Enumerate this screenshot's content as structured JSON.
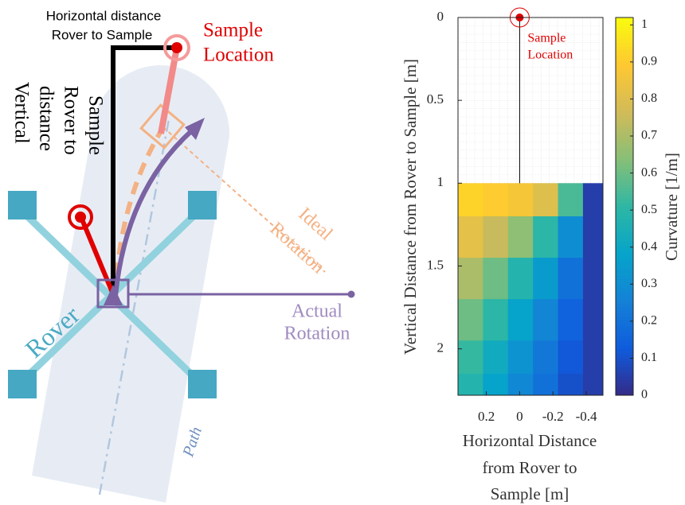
{
  "diagram": {
    "horizontal_label": [
      "Horizontal distance",
      "Rover to Sample"
    ],
    "sample_label": [
      "Sample",
      "Location"
    ],
    "vertical_label": [
      "Vertical",
      "distance",
      "Rover to",
      "Sample"
    ],
    "rover_label": "Rover",
    "ideal_label": [
      "Ideal",
      "Rotation"
    ],
    "actual_label": [
      "Actual",
      "Rotation"
    ],
    "path_label": "Path"
  },
  "chart_data": {
    "type": "heatmap",
    "xlabel": [
      "Horizontal Distance",
      "from Rover to",
      "Sample [m]"
    ],
    "ylabel": "Vertical Distance from Rover to Sample [m]",
    "colorbar_label": "Curvature [1/m]",
    "xlim": [
      0.37,
      -0.5
    ],
    "ylim": [
      0,
      2.28
    ],
    "xticks": [
      0.2,
      0,
      -0.2,
      -0.4
    ],
    "yticks": [
      0,
      0.5,
      1,
      1.5,
      2
    ],
    "clim": [
      0,
      1.02
    ],
    "cticks": [
      0,
      0.1,
      0.2,
      0.3,
      0.4,
      0.5,
      0.6,
      0.7,
      0.8,
      0.9,
      1
    ],
    "colormap": [
      "#352a87",
      "#0f5cdd",
      "#1481d6",
      "#06a4ca",
      "#2eb7a4",
      "#87bf77",
      "#d1bb59",
      "#fec832",
      "#f9fb0e"
    ],
    "x_edges": [
      0.37,
      0.22,
      0.07,
      -0.08,
      -0.23,
      -0.38,
      -0.5
    ],
    "y_edges": [
      1,
      1.2,
      1.45,
      1.7,
      1.95,
      2.15,
      2.28
    ],
    "z": [
      [
        0.92,
        0.9,
        0.87,
        0.8,
        0.55,
        0.05
      ],
      [
        0.82,
        0.75,
        0.65,
        0.5,
        0.3,
        0.05
      ],
      [
        0.7,
        0.6,
        0.48,
        0.35,
        0.2,
        0.05
      ],
      [
        0.6,
        0.5,
        0.38,
        0.27,
        0.15,
        0.05
      ],
      [
        0.52,
        0.42,
        0.32,
        0.22,
        0.12,
        0.05
      ],
      [
        0.48,
        0.38,
        0.28,
        0.2,
        0.1,
        0.05
      ]
    ],
    "sample_point": {
      "x": 0,
      "y": 0,
      "label": [
        "Sample",
        "Location"
      ],
      "color": "#e00000"
    },
    "grid": true
  }
}
